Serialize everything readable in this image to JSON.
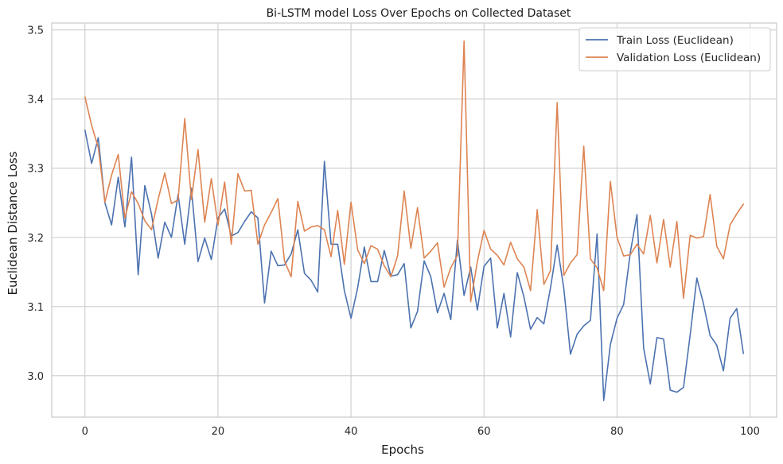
{
  "chart_data": {
    "type": "line",
    "title": "Bi-LSTM model Loss Over Epochs on Collected Dataset",
    "xlabel": "Epochs",
    "ylabel": "Euclidean Distance Loss",
    "xlim": [
      -5,
      104
    ],
    "ylim": [
      2.94,
      3.51
    ],
    "xticks": [
      0,
      20,
      40,
      60,
      80,
      100
    ],
    "yticks": [
      3.0,
      3.1,
      3.2,
      3.3,
      3.4,
      3.5
    ],
    "grid": true,
    "legend_position": "top-right",
    "x": [
      0,
      1,
      2,
      3,
      4,
      5,
      6,
      7,
      8,
      9,
      10,
      11,
      12,
      13,
      14,
      15,
      16,
      17,
      18,
      19,
      20,
      21,
      22,
      23,
      24,
      25,
      26,
      27,
      28,
      29,
      30,
      31,
      32,
      33,
      34,
      35,
      36,
      37,
      38,
      39,
      40,
      41,
      42,
      43,
      44,
      45,
      46,
      47,
      48,
      49,
      50,
      51,
      52,
      53,
      54,
      55,
      56,
      57,
      58,
      59,
      60,
      61,
      62,
      63,
      64,
      65,
      66,
      67,
      68,
      69,
      70,
      71,
      72,
      73,
      74,
      75,
      76,
      77,
      78,
      79,
      80,
      81,
      82,
      83,
      84,
      85,
      86,
      87,
      88,
      89,
      90,
      91,
      92,
      93,
      94,
      95,
      96,
      97,
      98,
      99
    ],
    "series": [
      {
        "name": "Train Loss (Euclidean)",
        "color": "#4c72b0",
        "values": [
          3.355,
          3.307,
          3.344,
          3.25,
          3.218,
          3.287,
          3.215,
          3.316,
          3.146,
          3.275,
          3.234,
          3.17,
          3.222,
          3.2,
          3.262,
          3.19,
          3.271,
          3.165,
          3.199,
          3.168,
          3.228,
          3.241,
          3.202,
          3.207,
          3.223,
          3.237,
          3.228,
          3.105,
          3.18,
          3.159,
          3.16,
          3.176,
          3.211,
          3.148,
          3.138,
          3.121,
          3.31,
          3.19,
          3.19,
          3.123,
          3.083,
          3.127,
          3.186,
          3.136,
          3.136,
          3.181,
          3.144,
          3.146,
          3.162,
          3.069,
          3.093,
          3.166,
          3.143,
          3.091,
          3.119,
          3.081,
          3.196,
          3.116,
          3.157,
          3.095,
          3.158,
          3.17,
          3.069,
          3.119,
          3.056,
          3.149,
          3.114,
          3.067,
          3.084,
          3.075,
          3.127,
          3.189,
          3.126,
          3.031,
          3.06,
          3.072,
          3.08,
          3.205,
          2.964,
          3.045,
          3.083,
          3.103,
          3.178,
          3.233,
          3.04,
          2.988,
          3.055,
          3.053,
          2.979,
          2.976,
          2.983,
          3.059,
          3.141,
          3.104,
          3.058,
          3.044,
          3.007,
          3.083,
          3.097,
          3.032
        ]
      },
      {
        "name": "Validation Loss (Euclidean)",
        "color": "#dd8452",
        "values": [
          3.403,
          3.362,
          3.33,
          3.251,
          3.29,
          3.32,
          3.228,
          3.266,
          3.249,
          3.224,
          3.211,
          3.255,
          3.293,
          3.249,
          3.254,
          3.372,
          3.255,
          3.327,
          3.222,
          3.285,
          3.218,
          3.28,
          3.19,
          3.292,
          3.267,
          3.268,
          3.19,
          3.218,
          3.236,
          3.256,
          3.166,
          3.143,
          3.252,
          3.209,
          3.215,
          3.217,
          3.211,
          3.172,
          3.239,
          3.161,
          3.251,
          3.182,
          3.162,
          3.188,
          3.183,
          3.159,
          3.143,
          3.173,
          3.267,
          3.184,
          3.243,
          3.17,
          3.18,
          3.192,
          3.128,
          3.156,
          3.174,
          3.484,
          3.107,
          3.165,
          3.21,
          3.183,
          3.174,
          3.16,
          3.193,
          3.169,
          3.157,
          3.123,
          3.24,
          3.132,
          3.152,
          3.395,
          3.145,
          3.163,
          3.175,
          3.332,
          3.169,
          3.156,
          3.123,
          3.281,
          3.2,
          3.173,
          3.175,
          3.19,
          3.176,
          3.232,
          3.163,
          3.226,
          3.157,
          3.223,
          3.112,
          3.203,
          3.199,
          3.201,
          3.262,
          3.187,
          3.169,
          3.218,
          3.234,
          3.248
        ]
      }
    ]
  }
}
